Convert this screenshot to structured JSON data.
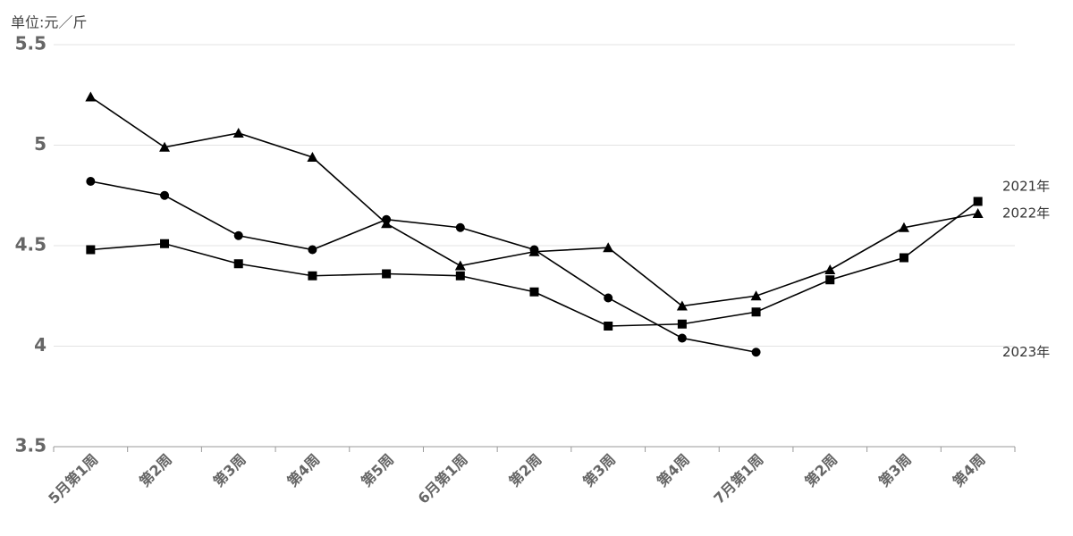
{
  "chart_data": {
    "type": "line",
    "unit_label": "单位:元／斤",
    "categories": [
      "5月第1周",
      "第2周",
      "第3周",
      "第4周",
      "第5周",
      "6月第1周",
      "第2周",
      "第3周",
      "第4周",
      "7月第1周",
      "第2周",
      "第3周",
      "第4周"
    ],
    "series": [
      {
        "name": "2021年",
        "color": "#000000",
        "marker": "square",
        "values": [
          4.48,
          4.51,
          4.41,
          4.35,
          4.36,
          4.35,
          4.27,
          4.1,
          4.11,
          4.17,
          4.33,
          4.44,
          4.72
        ]
      },
      {
        "name": "2022年",
        "color": "#000000",
        "marker": "triangle",
        "values": [
          5.24,
          4.99,
          5.06,
          4.94,
          4.61,
          4.4,
          4.47,
          4.49,
          4.2,
          4.25,
          4.38,
          4.59,
          4.66
        ]
      },
      {
        "name": "2023年",
        "color": "#000000",
        "marker": "circle",
        "values": [
          4.82,
          4.75,
          4.55,
          4.48,
          4.63,
          4.59,
          4.48,
          4.24,
          4.04,
          3.97,
          null,
          null,
          null
        ]
      }
    ],
    "ylim": [
      3.5,
      5.5
    ],
    "yticks": [
      3.5,
      4,
      4.5,
      5,
      5.5
    ],
    "grid": true
  }
}
